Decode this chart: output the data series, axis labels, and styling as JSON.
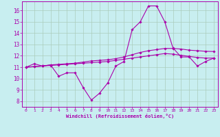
{
  "bg_color": "#c8eef0",
  "grid_color": "#aaccbb",
  "line_color": "#aa00aa",
  "xlabel": "Windchill (Refroidissement éolien,°C)",
  "xlim": [
    -0.5,
    23.5
  ],
  "ylim": [
    7.5,
    16.8
  ],
  "yticks": [
    8,
    9,
    10,
    11,
    12,
    13,
    14,
    15,
    16
  ],
  "xticks": [
    0,
    1,
    2,
    3,
    4,
    5,
    6,
    7,
    8,
    9,
    10,
    11,
    12,
    13,
    14,
    15,
    16,
    17,
    18,
    19,
    20,
    21,
    22,
    23
  ],
  "line1_x": [
    0,
    1,
    2,
    3,
    4,
    5,
    6,
    7,
    8,
    9,
    10,
    11,
    12,
    13,
    14,
    15,
    16,
    17,
    18,
    19,
    20,
    21,
    22,
    23
  ],
  "line1_y": [
    11.0,
    11.3,
    11.1,
    11.2,
    10.2,
    10.5,
    10.5,
    9.2,
    8.1,
    8.7,
    9.6,
    11.1,
    11.5,
    14.3,
    15.0,
    16.4,
    16.4,
    15.0,
    12.7,
    11.9,
    11.9,
    11.1,
    11.5,
    11.8
  ],
  "line2_x": [
    0,
    1,
    2,
    3,
    4,
    5,
    6,
    7,
    8,
    9,
    10,
    11,
    12,
    13,
    14,
    15,
    16,
    17,
    18,
    19,
    20,
    21,
    22,
    23
  ],
  "line2_y": [
    11.0,
    11.05,
    11.1,
    11.15,
    11.2,
    11.25,
    11.3,
    11.35,
    11.4,
    11.45,
    11.5,
    11.6,
    11.7,
    11.8,
    11.9,
    12.0,
    12.1,
    12.2,
    12.15,
    12.05,
    11.95,
    11.85,
    11.8,
    11.8
  ],
  "line3_x": [
    0,
    1,
    2,
    3,
    4,
    5,
    6,
    7,
    8,
    9,
    10,
    11,
    12,
    13,
    14,
    15,
    16,
    17,
    18,
    19,
    20,
    21,
    22,
    23
  ],
  "line3_y": [
    11.0,
    11.05,
    11.1,
    11.2,
    11.25,
    11.3,
    11.35,
    11.45,
    11.55,
    11.6,
    11.65,
    11.75,
    11.9,
    12.1,
    12.3,
    12.45,
    12.55,
    12.65,
    12.65,
    12.6,
    12.5,
    12.45,
    12.4,
    12.38
  ],
  "marker": "D",
  "markersize": 1.8,
  "linewidth": 0.8
}
